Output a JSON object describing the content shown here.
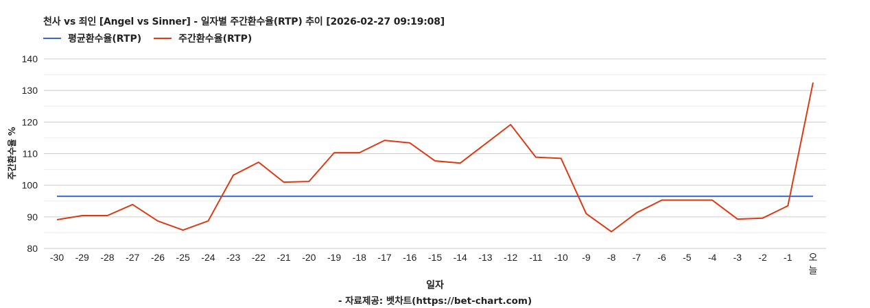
{
  "title": "천사 vs 죄인 [Angel vs Sinner] - 일자별 주간환수율(RTP) 추이 [2026-02-27 09:19:08]",
  "legend": [
    {
      "label": "평균환수율(RTP)",
      "color": "#3366cc"
    },
    {
      "label": "주간환수율(RTP)",
      "color": "#dc3912"
    }
  ],
  "x_axis_title": "일자",
  "source_note": "- 자료제공: 벳차트(https://bet-chart.com)",
  "chart_data": {
    "type": "line",
    "title": "천사 vs 죄인 [Angel vs Sinner] - 일자별 주간환수율(RTP) 추이 [2026-02-27 09:19:08]",
    "xlabel": "일자",
    "ylabel": "주간환수율 %",
    "ylim": [
      80,
      140
    ],
    "yticks": [
      80,
      90,
      100,
      110,
      120,
      130,
      140
    ],
    "grid": true,
    "legend_position": "top-left",
    "categories": [
      "-30",
      "-29",
      "-28",
      "-27",
      "-26",
      "-25",
      "-24",
      "-23",
      "-22",
      "-21",
      "-20",
      "-19",
      "-18",
      "-17",
      "-16",
      "-15",
      "-14",
      "-13",
      "-12",
      "-11",
      "-10",
      "-9",
      "-8",
      "-7",
      "-6",
      "-5",
      "-4",
      "-3",
      "-2",
      "-1",
      "오늘"
    ],
    "series": [
      {
        "name": "평균환수율(RTP)",
        "color": "#3366cc",
        "values": [
          96.5,
          96.5,
          96.5,
          96.5,
          96.5,
          96.5,
          96.5,
          96.5,
          96.5,
          96.5,
          96.5,
          96.5,
          96.5,
          96.5,
          96.5,
          96.5,
          96.5,
          96.5,
          96.5,
          96.5,
          96.5,
          96.5,
          96.5,
          96.5,
          96.5,
          96.5,
          96.5,
          96.5,
          96.5,
          96.5,
          96.5
        ]
      },
      {
        "name": "주간환수율(RTP)",
        "color": "#dc3912",
        "values": [
          89.1,
          90.4,
          90.4,
          93.9,
          88.7,
          85.8,
          88.7,
          103.2,
          107.3,
          101.0,
          101.2,
          110.3,
          110.3,
          114.2,
          113.4,
          107.7,
          107.0,
          113.1,
          119.2,
          108.9,
          108.5,
          91.0,
          85.3,
          91.3,
          95.3,
          95.3,
          95.3,
          89.3,
          89.6,
          93.5,
          132.5
        ]
      }
    ]
  }
}
